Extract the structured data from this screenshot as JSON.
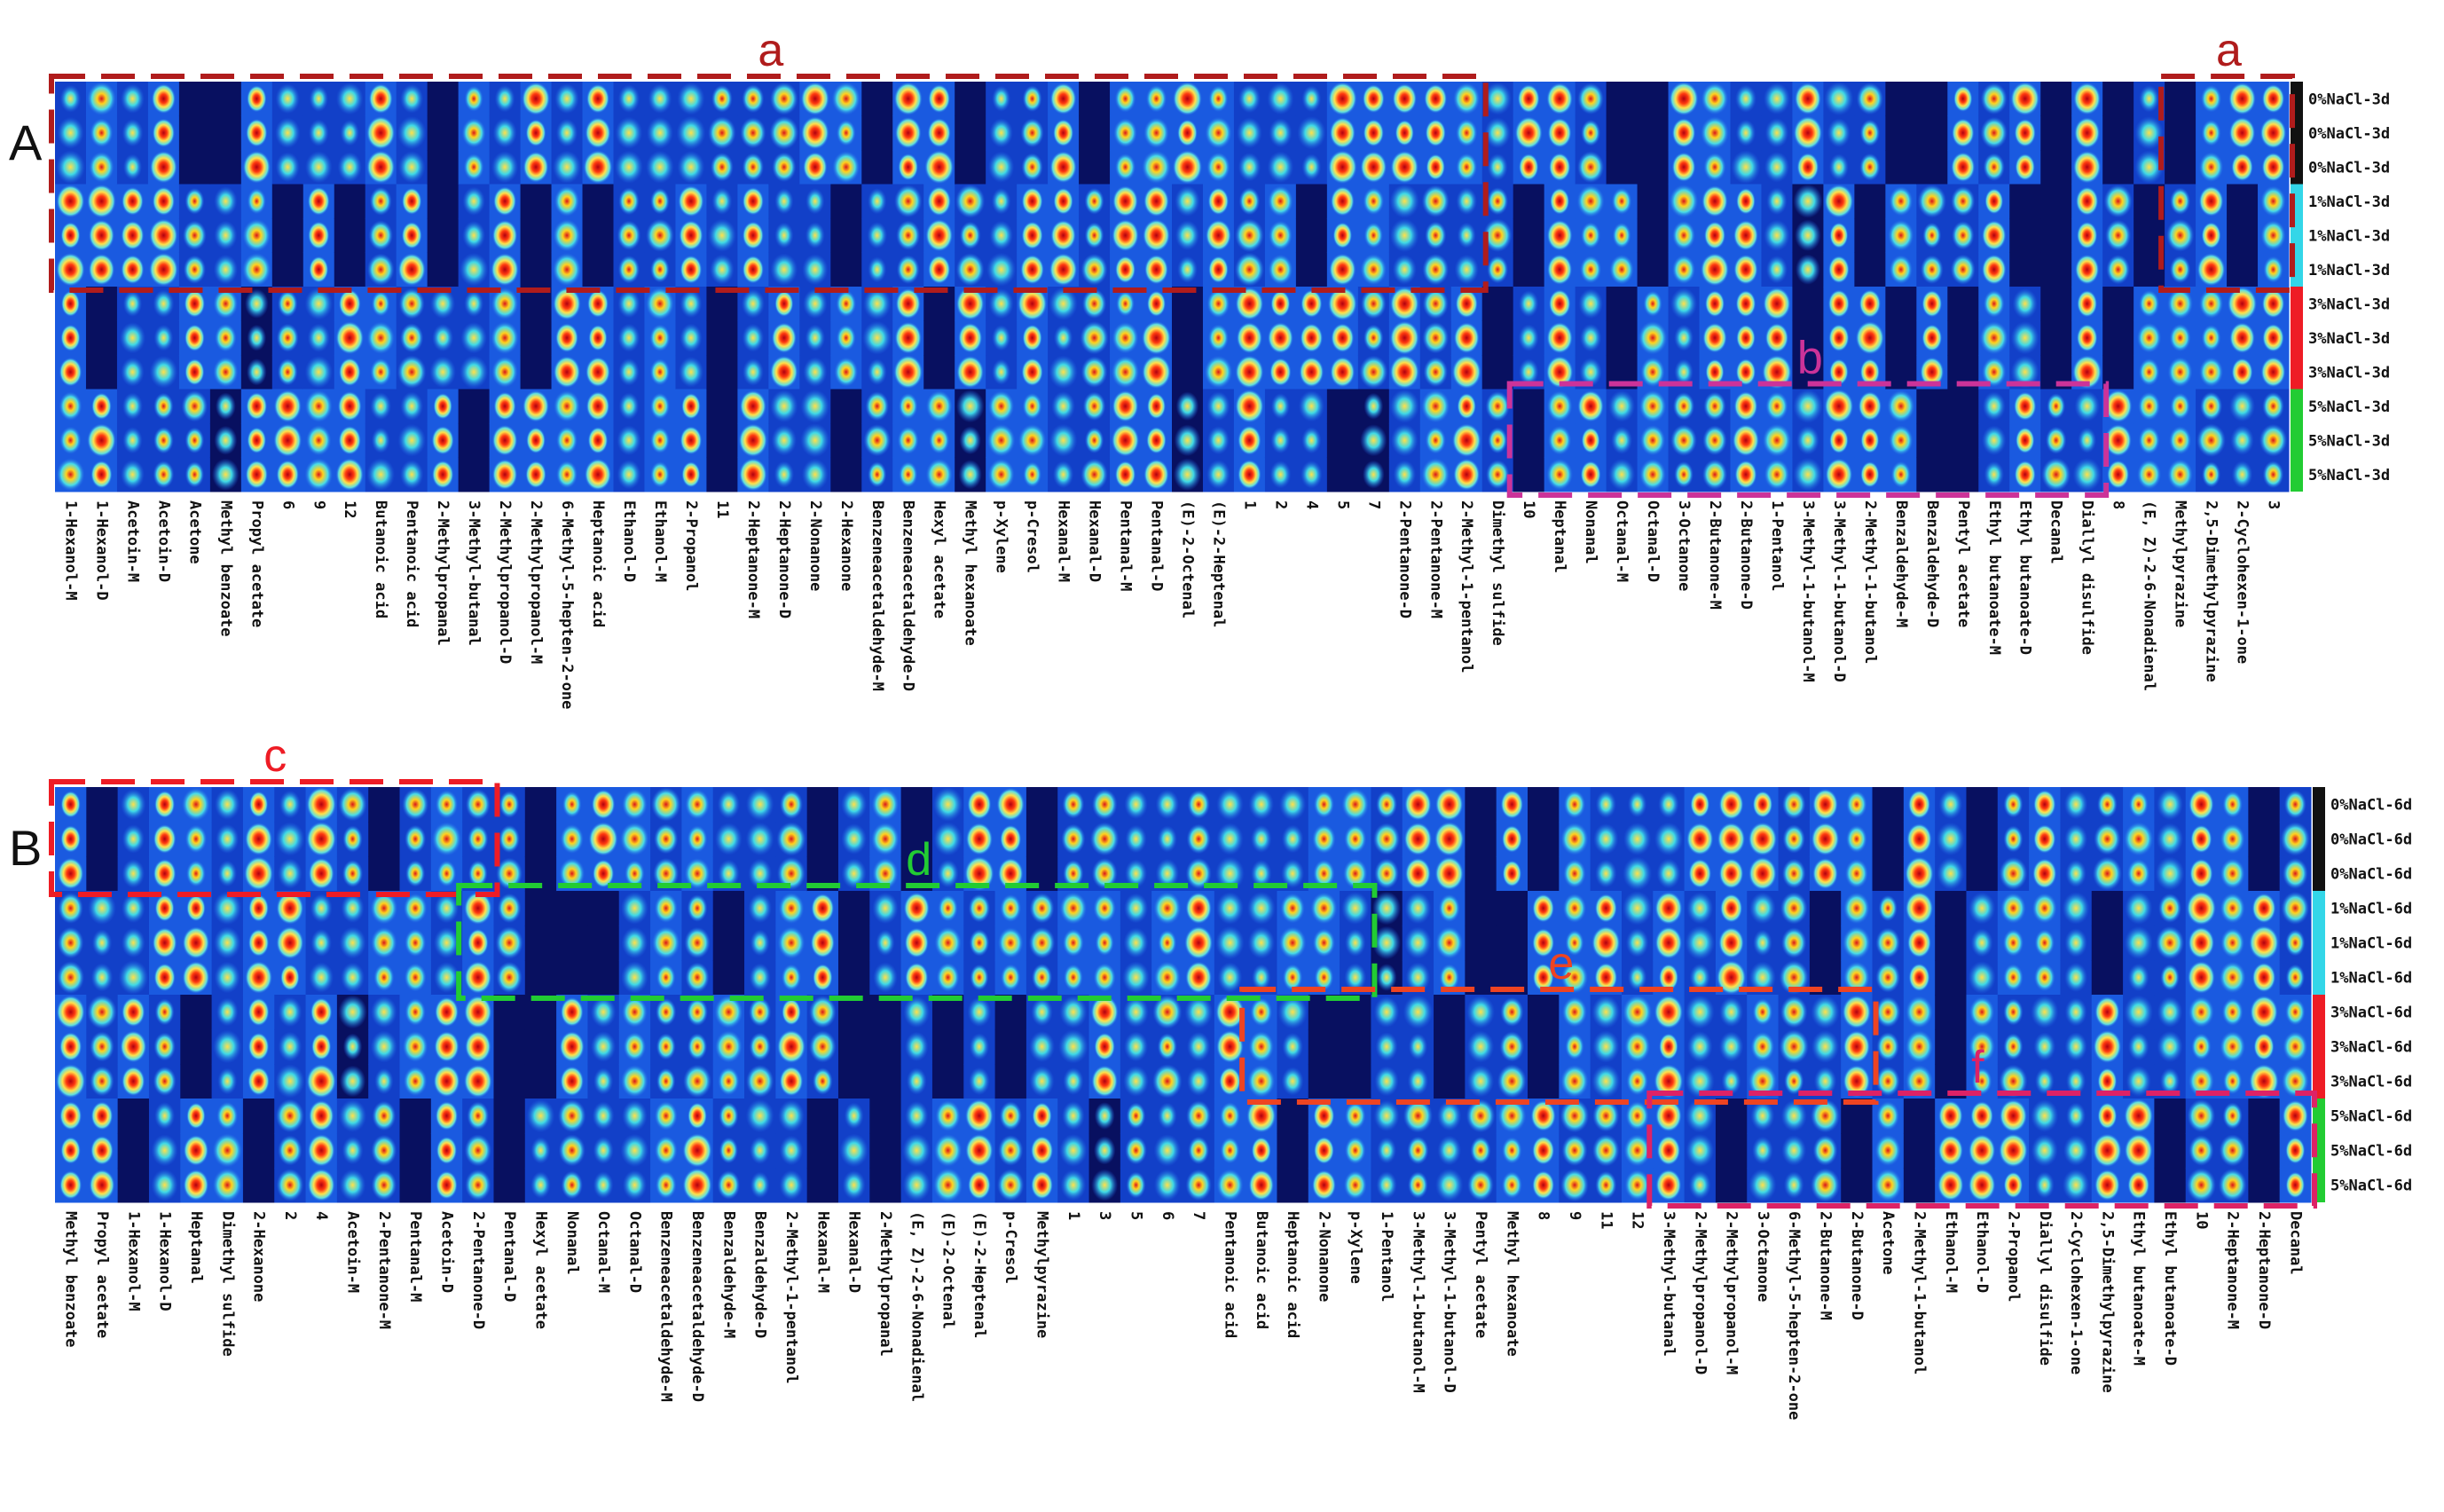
{
  "chart_data": [
    {
      "type": "heatmap",
      "panel_label": "A",
      "row_labels": [
        "0%NaCl-3d",
        "0%NaCl-3d",
        "0%NaCl-3d",
        "1%NaCl-3d",
        "1%NaCl-3d",
        "1%NaCl-3d",
        "3%NaCl-3d",
        "3%NaCl-3d",
        "3%NaCl-3d",
        "5%NaCl-3d",
        "5%NaCl-3d",
        "5%NaCl-3d"
      ],
      "group_colors": [
        "#111111",
        "#33d6e8",
        "#ee1c25",
        "#22cc33"
      ],
      "columns": [
        "1-Hexanol-M",
        "1-Hexanol-D",
        "Acetoin-M",
        "Acetoin-D",
        "Acetone",
        "Methyl benzoate",
        "Propyl acetate",
        "6",
        "9",
        "12",
        "Butanoic acid",
        "Pentanoic acid",
        "2-Methylpropanal",
        "3-Methyl-butanal",
        "2-Methylpropanol-D",
        "2-Methylpropanol-M",
        "6-Methyl-5-hepten-2-one",
        "Heptanoic acid",
        "Ethanol-D",
        "Ethanol-M",
        "2-Propanol",
        "11",
        "2-Heptanone-M",
        "2-Heptanone-D",
        "2-Nonanone",
        "2-Hexanone",
        "Benzeneacetaldehyde-M",
        "Benzeneacetaldehyde-D",
        "Hexyl acetate",
        "Methyl hexanoate",
        "p-Xylene",
        "p-Cresol",
        "Hexanal-M",
        "Hexanal-D",
        "Pentanal-M",
        "Pentanal-D",
        "(E)-2-Octenal",
        "(E)-2-Heptenal",
        "1",
        "2",
        "4",
        "5",
        "7",
        "2-Pentanone-D",
        "2-Pentanone-M",
        "2-Methyl-1-pentanol",
        "Dimethyl sulfide",
        "10",
        "Heptanal",
        "Nonanal",
        "Octanal-M",
        "Octanal-D",
        "3-Octanone",
        "2-Butanone-M",
        "2-Butanone-D",
        "1-Pentanol",
        "3-Methyl-1-butanol-M",
        "3-Methyl-1-butanol-D",
        "2-Methyl-1-butanol",
        "Benzaldehyde-M",
        "Benzaldehyde-D",
        "Pentyl acetate",
        "Ethyl butanoate-M",
        "Ethyl butanoate-D",
        "Decanal",
        "Diallyl disulfide",
        "8",
        "(E, Z)-2-6-Nonadienal",
        "Methylpyrazine",
        "2,5-Dimethylpyrazine",
        "2-Cyclohexen-1-one",
        "3"
      ],
      "regions": [
        {
          "label": "a",
          "color": "#b01c1c",
          "col_start": 0,
          "col_end": 45,
          "row_start": 0,
          "row_end": 5
        },
        {
          "label": "a",
          "color": "#b01c1c",
          "col_start": 68,
          "col_end": 71,
          "row_start": 0,
          "row_end": 5
        },
        {
          "label": "b",
          "color": "#cc3399",
          "col_start": 47,
          "col_end": 65,
          "row_start": 9,
          "row_end": 11
        }
      ]
    },
    {
      "type": "heatmap",
      "panel_label": "B",
      "row_labels": [
        "0%NaCl-6d",
        "0%NaCl-6d",
        "0%NaCl-6d",
        "1%NaCl-6d",
        "1%NaCl-6d",
        "1%NaCl-6d",
        "3%NaCl-6d",
        "3%NaCl-6d",
        "3%NaCl-6d",
        "5%NaCl-6d",
        "5%NaCl-6d",
        "5%NaCl-6d"
      ],
      "group_colors": [
        "#111111",
        "#33d6e8",
        "#ee1c25",
        "#22cc33"
      ],
      "columns": [
        "Methyl benzoate",
        "Propyl acetate",
        "1-Hexanol-M",
        "1-Hexanol-D",
        "Heptanal",
        "Dimethyl sulfide",
        "2-Hexanone",
        "2",
        "4",
        "Acetoin-M",
        "2-Pentanone-M",
        "Pentanal-M",
        "Acetoin-D",
        "2-Pentanone-D",
        "Pentanal-D",
        "Hexyl acetate",
        "Nonanal",
        "Octanal-M",
        "Octanal-D",
        "Benzeneacetaldehyde-M",
        "Benzeneacetaldehyde-D",
        "Benzaldehyde-M",
        "Benzaldehyde-D",
        "2-Methyl-1-pentanol",
        "Hexanal-M",
        "Hexanal-D",
        "2-Methylpropanal",
        "(E, Z)-2-6-Nonadienal",
        "(E)-2-Octenal",
        "(E)-2-Heptenal",
        "p-Cresol",
        "Methylpyrazine",
        "1",
        "3",
        "5",
        "6",
        "7",
        "Pentanoic acid",
        "Butanoic acid",
        "Heptanoic acid",
        "2-Nonanone",
        "p-Xylene",
        "1-Pentanol",
        "3-Methyl-1-butanol-M",
        "3-Methyl-1-butanol-D",
        "Pentyl acetate",
        "Methyl hexanoate",
        "8",
        "9",
        "11",
        "12",
        "3-Methyl-butanal",
        "2-Methylpropanol-D",
        "2-Methylpropanol-M",
        "3-Octanone",
        "6-Methyl-5-hepten-2-one",
        "2-Butanone-M",
        "2-Butanone-D",
        "Acetone",
        "2-Methyl-1-butanol",
        "Ethanol-M",
        "Ethanol-D",
        "2-Propanol",
        "Diallyl disulfide",
        "2-Cyclohexen-1-one",
        "2,5-Dimethylpyrazine",
        "Ethyl butanoate-M",
        "Ethyl butanoate-D",
        "10",
        "2-Heptanone-M",
        "2-Heptanone-D",
        "Decanal"
      ],
      "regions": [
        {
          "label": "c",
          "color": "#ee1c25",
          "col_start": 0,
          "col_end": 13,
          "row_start": 0,
          "row_end": 2
        },
        {
          "label": "d",
          "color": "#22cc33",
          "col_start": 13,
          "col_end": 41,
          "row_start": 3,
          "row_end": 5
        },
        {
          "label": "e",
          "color": "#ee4422",
          "col_start": 38,
          "col_end": 57,
          "row_start": 6,
          "row_end": 8
        },
        {
          "label": "f",
          "color": "#dd2266",
          "col_start": 51,
          "col_end": 71,
          "row_start": 9,
          "row_end": 11
        }
      ]
    }
  ]
}
